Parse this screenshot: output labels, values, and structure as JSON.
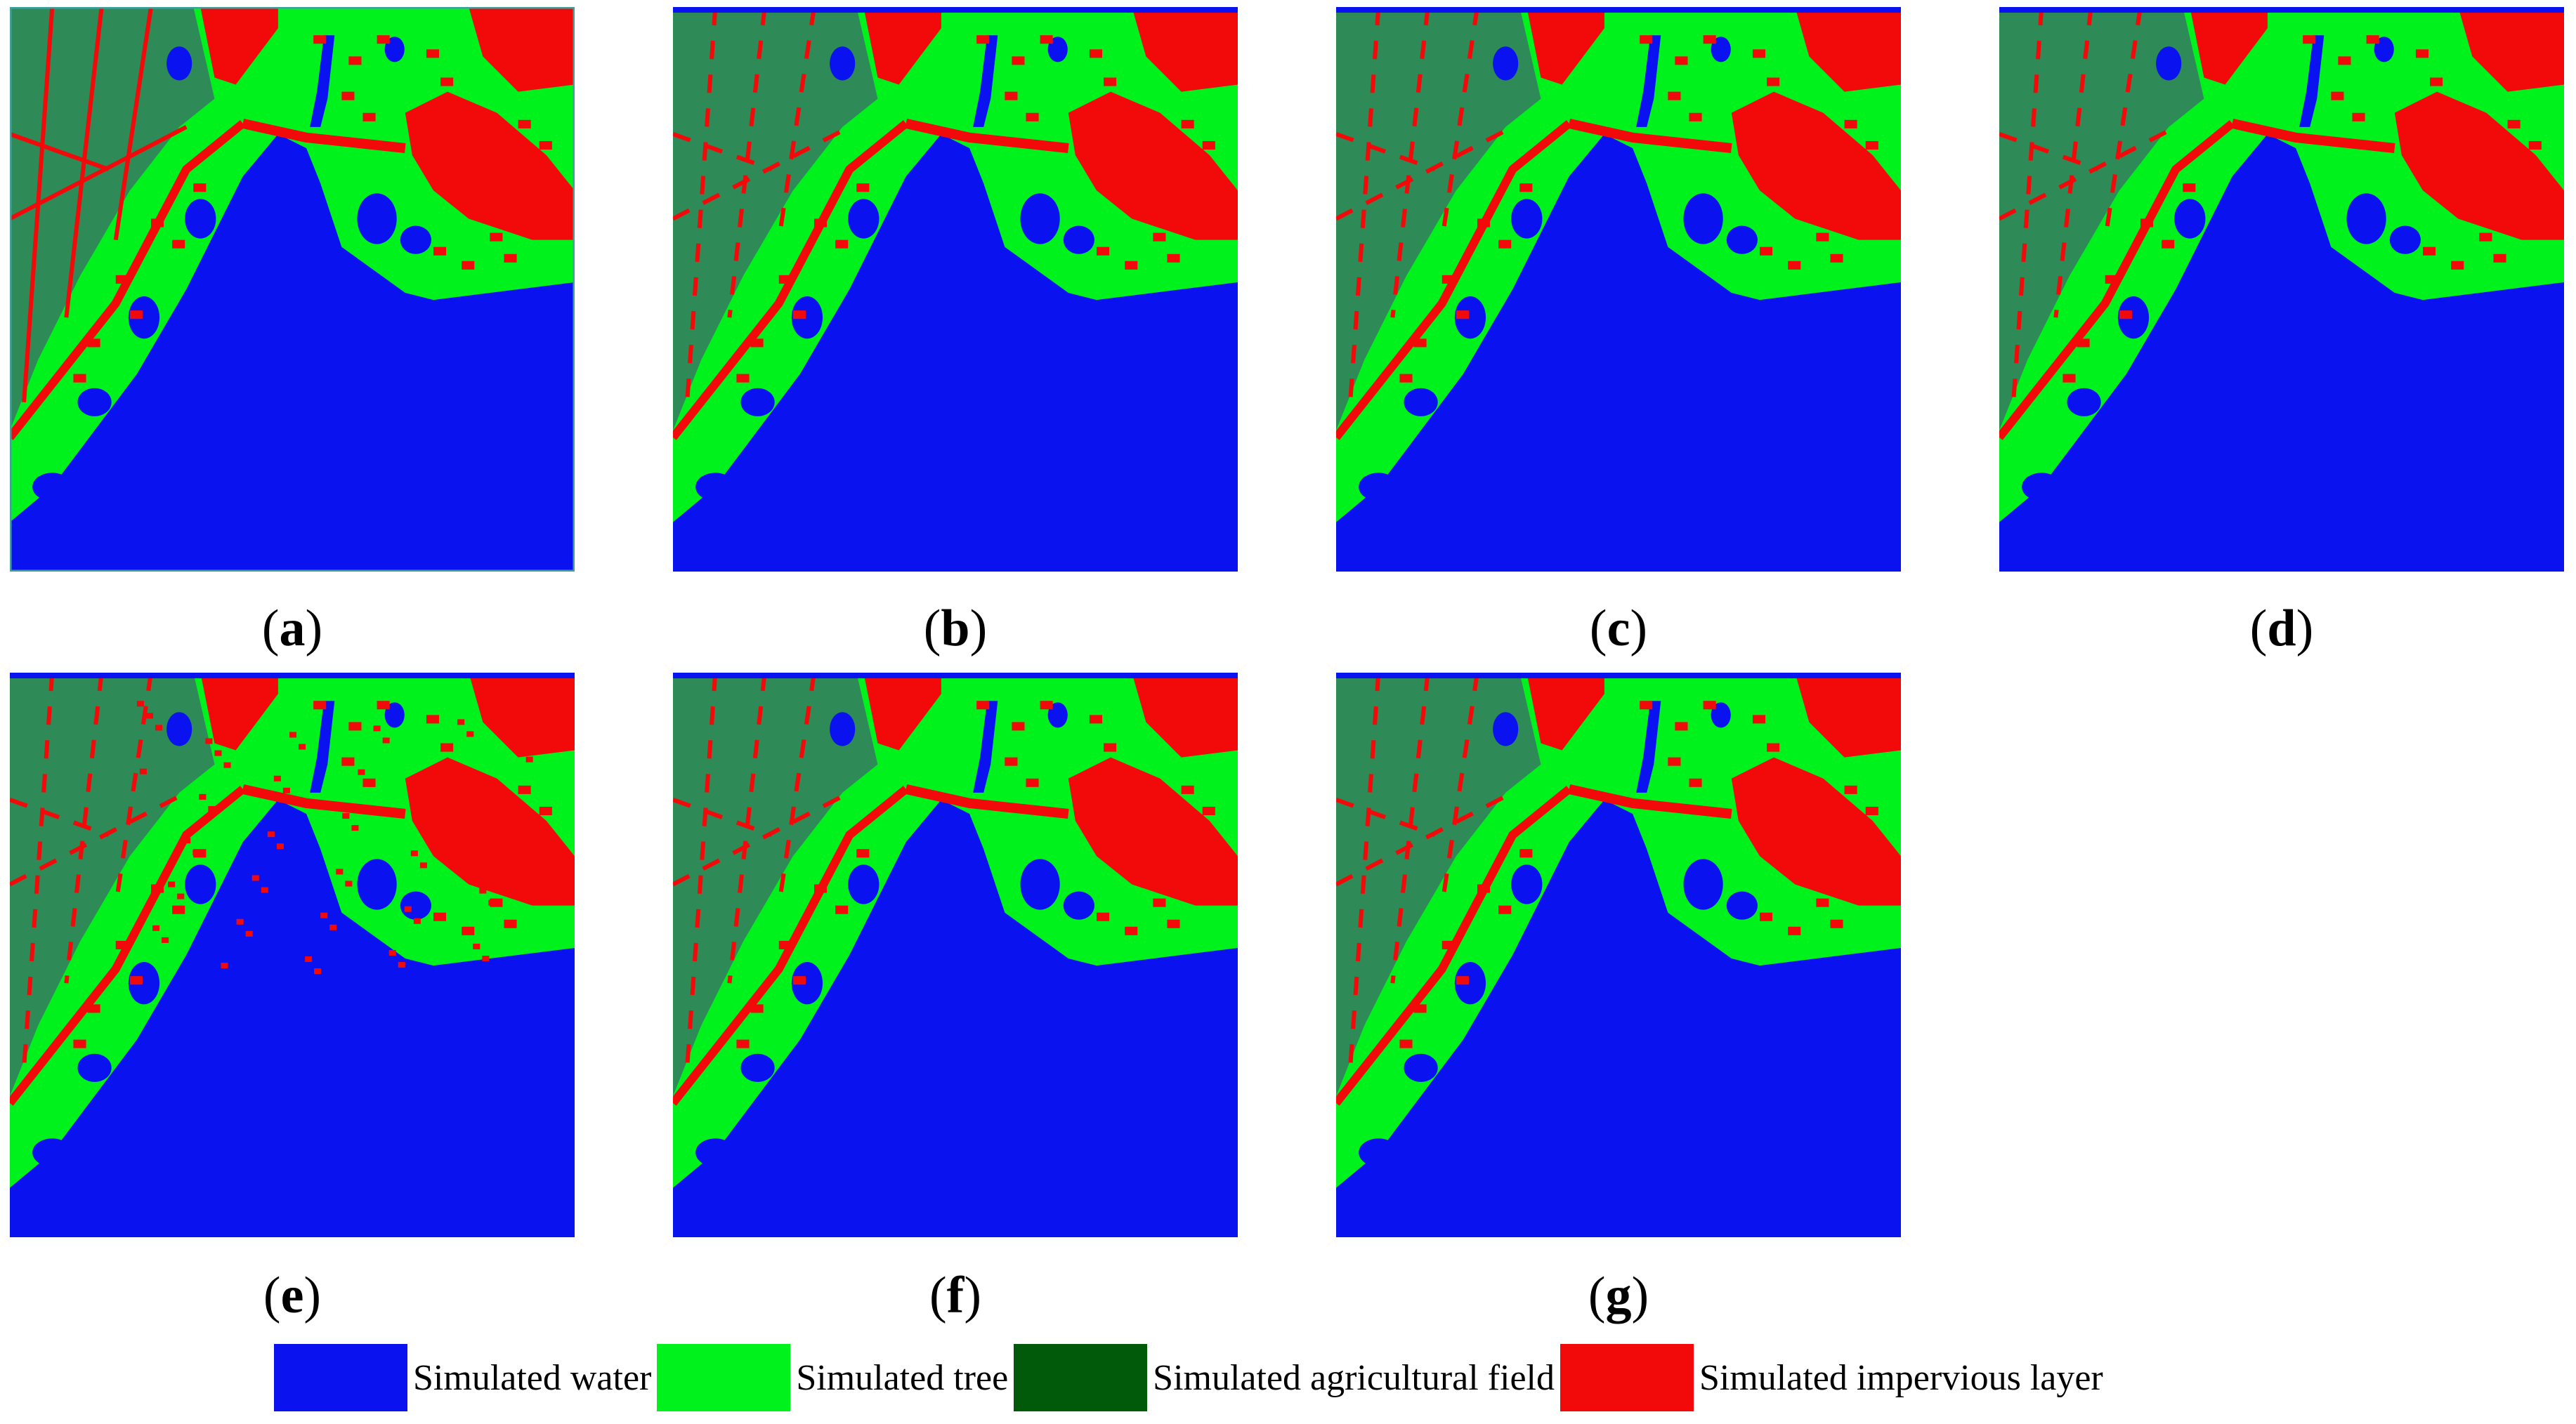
{
  "colors": {
    "water": "#0a12f0",
    "tree": "#00f21c",
    "agricultural": "#2e8a57",
    "impervious": "#f20a0a",
    "legend_agricultural": "#005a0a"
  },
  "panels": [
    {
      "open": "(",
      "letter": "a",
      "close": ")",
      "variant": "reference"
    },
    {
      "open": "(",
      "letter": "b",
      "close": ")",
      "variant": "sim"
    },
    {
      "open": "(",
      "letter": "c",
      "close": ")",
      "variant": "sim"
    },
    {
      "open": "(",
      "letter": "d",
      "close": ")",
      "variant": "sim"
    },
    {
      "open": "(",
      "letter": "e",
      "close": ")",
      "variant": "noisy"
    },
    {
      "open": "(",
      "letter": "f",
      "close": ")",
      "variant": "sim"
    },
    {
      "open": "(",
      "letter": "g",
      "close": ")",
      "variant": "sim"
    }
  ],
  "legend": [
    {
      "label": "Simulated water",
      "color_key": "water"
    },
    {
      "label": "Simulated tree",
      "color_key": "tree"
    },
    {
      "label": "Simulated agricultural field",
      "color_key": "legend_agricultural"
    },
    {
      "label": "Simulated impervious layer",
      "color_key": "impervious"
    }
  ]
}
